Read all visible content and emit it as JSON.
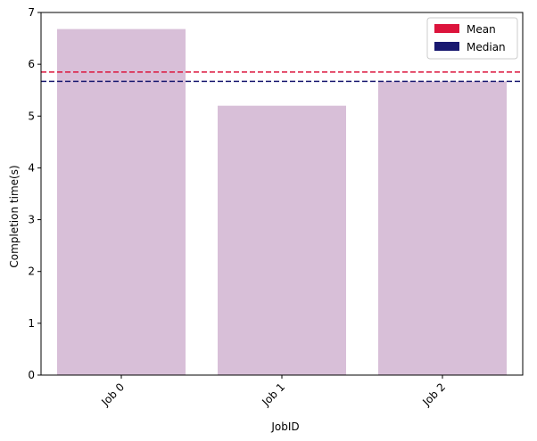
{
  "chart_data": {
    "type": "bar",
    "categories": [
      "Job 0",
      "Job 1",
      "Job 2"
    ],
    "values": [
      6.68,
      5.2,
      5.67
    ],
    "xlabel": "JobID",
    "ylabel": "Completion time(s)",
    "ylim": [
      0,
      7
    ],
    "yticks": [
      0,
      1,
      2,
      3,
      4,
      5,
      6,
      7
    ],
    "grid": false,
    "bar_color": "#d8bfd8",
    "reference_lines": [
      {
        "name": "Mean",
        "value": 5.85,
        "color": "#dc143c",
        "style": "dashed"
      },
      {
        "name": "Median",
        "value": 5.67,
        "color": "#191970",
        "style": "dashed"
      }
    ],
    "legend": {
      "placement": "top-right",
      "entries": [
        {
          "label": "Mean",
          "color": "#dc143c"
        },
        {
          "label": "Median",
          "color": "#191970"
        }
      ]
    }
  }
}
